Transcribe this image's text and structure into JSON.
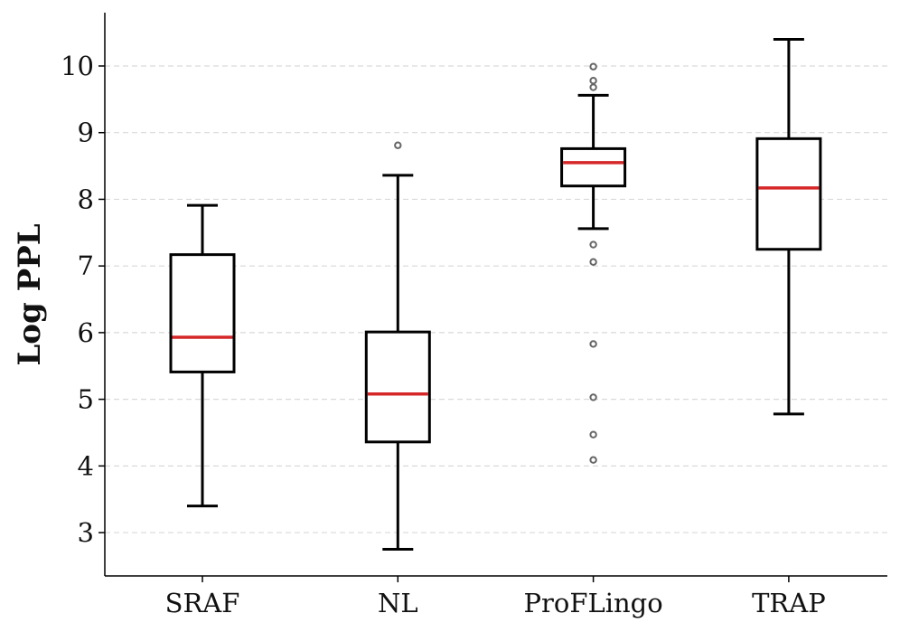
{
  "chart_data": {
    "type": "box",
    "title": "",
    "xlabel": "",
    "ylabel": "Log PPL",
    "ylim": [
      2.35,
      10.8
    ],
    "yticks": [
      "3",
      "4",
      "5",
      "6",
      "7",
      "8",
      "9",
      "10"
    ],
    "grid": "horizontal-dashed",
    "colors": {
      "median": "#d62728",
      "box": "#000000",
      "flier": "#666666",
      "grid": "#d9d9d9"
    },
    "categories": [
      "SRAF",
      "NL",
      "ProFLingo",
      "TRAP"
    ],
    "boxes": [
      {
        "name": "SRAF",
        "whislo": 3.4,
        "q1": 5.41,
        "med": 5.93,
        "q3": 7.17,
        "whishi": 7.91,
        "fliers": []
      },
      {
        "name": "NL",
        "whislo": 2.75,
        "q1": 4.36,
        "med": 5.08,
        "q3": 6.01,
        "whishi": 8.36,
        "fliers": [
          8.81
        ]
      },
      {
        "name": "ProFLingo",
        "whislo": 7.56,
        "q1": 8.2,
        "med": 8.55,
        "q3": 8.76,
        "whishi": 9.56,
        "fliers": [
          9.99,
          9.78,
          9.68,
          7.32,
          7.06,
          5.83,
          5.03,
          4.47,
          4.09
        ]
      },
      {
        "name": "TRAP",
        "whislo": 4.78,
        "q1": 7.25,
        "med": 8.17,
        "q3": 8.91,
        "whishi": 10.4,
        "fliers": []
      }
    ]
  }
}
